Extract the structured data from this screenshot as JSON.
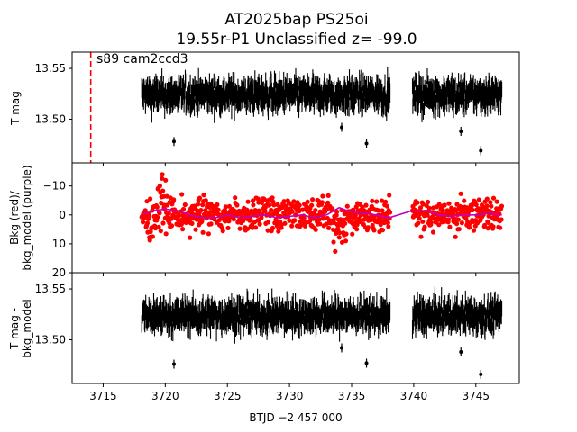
{
  "title_line1": "AT2025bap  PS25oi",
  "title_line2": "19.55r-P1 Unclassified z= -99.0",
  "annotation": "s89 cam2ccd3",
  "xlabel": "BTJD −2 457 000",
  "colors": {
    "flux": "#000000",
    "bkg": "#ff0000",
    "model": "#bf00bf",
    "marker": "#ff0000"
  },
  "chart_data": [
    {
      "type": "scatter",
      "panel": "top",
      "ylabel": "T mag",
      "y_inverted": true,
      "xlim": [
        3712.5,
        3748.5
      ],
      "ylim": [
        13.566,
        13.457
      ],
      "xticks": [
        "3715",
        "3720",
        "3725",
        "3730",
        "3735",
        "3740",
        "3745"
      ],
      "yticks": [
        "13.50",
        "13.55"
      ],
      "marker_line_x": 3714.0,
      "segments": [
        [
          3718.1,
          3738.1
        ],
        [
          3739.9,
          3747.1
        ]
      ],
      "series": [
        {
          "y_center": 13.524,
          "y_spread": 0.012,
          "outliers": [
            [
              3720.7,
              13.478
            ],
            [
              3736.2,
              13.476
            ],
            [
              3745.4,
              13.469
            ],
            [
              3743.8,
              13.488
            ],
            [
              3734.2,
              13.492
            ]
          ]
        }
      ]
    },
    {
      "type": "scatter",
      "panel": "middle",
      "ylabel": "Bkg (red)/\nbkg_model (purple)",
      "xlim": [
        3712.5,
        3748.5
      ],
      "ylim": [
        -18,
        20
      ],
      "yticks": [
        "20",
        "10",
        "0",
        "−10"
      ],
      "series": [
        {
          "name": "Bkg",
          "y_center": 0,
          "y_spread": 6
        },
        {
          "name": "bkg_model",
          "points": [
            [
              3718.1,
              0
            ],
            [
              3719,
              -1.5
            ],
            [
              3720,
              -2
            ],
            [
              3721,
              -1.5
            ],
            [
              3722,
              0
            ],
            [
              3723,
              1
            ],
            [
              3724,
              1
            ],
            [
              3725,
              0
            ],
            [
              3726,
              1
            ],
            [
              3727,
              0.5
            ],
            [
              3728,
              0
            ],
            [
              3729,
              1
            ],
            [
              3730,
              0.5
            ],
            [
              3731,
              0
            ],
            [
              3732,
              1
            ],
            [
              3733,
              0
            ],
            [
              3734,
              -2.5
            ],
            [
              3735,
              -1
            ],
            [
              3736,
              -0.5
            ],
            [
              3737,
              0
            ],
            [
              3738,
              1
            ],
            [
              3739.9,
              -1.5
            ],
            [
              3741,
              -1.5
            ],
            [
              3742,
              0
            ],
            [
              3743,
              0.5
            ],
            [
              3744,
              0
            ],
            [
              3745,
              0
            ],
            [
              3746,
              -0.5
            ],
            [
              3747.1,
              0
            ]
          ]
        }
      ]
    },
    {
      "type": "scatter",
      "panel": "bottom",
      "ylabel": "T mag -\nbkg_model",
      "xlim": [
        3712.5,
        3748.5
      ],
      "ylim": [
        13.566,
        13.457
      ],
      "yticks": [
        "13.50",
        "13.55"
      ],
      "series": [
        {
          "y_center": 13.524,
          "y_spread": 0.012,
          "outliers": [
            [
              3720.7,
              13.476
            ],
            [
              3736.2,
              13.477
            ],
            [
              3745.4,
              13.466
            ],
            [
              3743.8,
              13.488
            ],
            [
              3734.2,
              13.492
            ]
          ]
        }
      ]
    }
  ]
}
